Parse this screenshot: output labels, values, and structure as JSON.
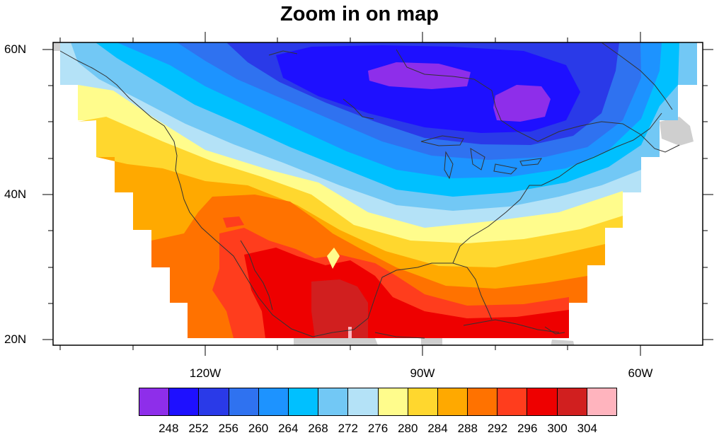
{
  "title": "Zoom in on map",
  "lat_labels": [
    {
      "text": "60N",
      "lat": 60
    },
    {
      "text": "40N",
      "lat": 40
    },
    {
      "text": "20N",
      "lat": 20
    }
  ],
  "lon_labels": [
    {
      "text": "120W",
      "lon": -120
    },
    {
      "text": "90W",
      "lon": -90
    },
    {
      "text": "60W",
      "lon": -60
    }
  ],
  "map_extent": {
    "lon_min": -140,
    "lon_max": -50,
    "lat_min": 19,
    "lat_max": 61
  },
  "colorbar": {
    "colors": [
      "#8e2eea",
      "#1e10ff",
      "#2a3ae8",
      "#2f72f0",
      "#1d93ff",
      "#00c0ff",
      "#72c8f5",
      "#b4e2f7",
      "#fffc8c",
      "#ffd72e",
      "#ffa900",
      "#ff7200",
      "#ff3d1d",
      "#ee0000",
      "#d11f1f",
      "#ffb4be"
    ],
    "labels": [
      "248",
      "252",
      "256",
      "260",
      "264",
      "268",
      "272",
      "276",
      "280",
      "284",
      "288",
      "292",
      "296",
      "300",
      "304"
    ]
  },
  "colors": {
    "land": "#cfcfcf",
    "coast": "#333333",
    "frame": "#000000",
    "background": "#ffffff"
  }
}
